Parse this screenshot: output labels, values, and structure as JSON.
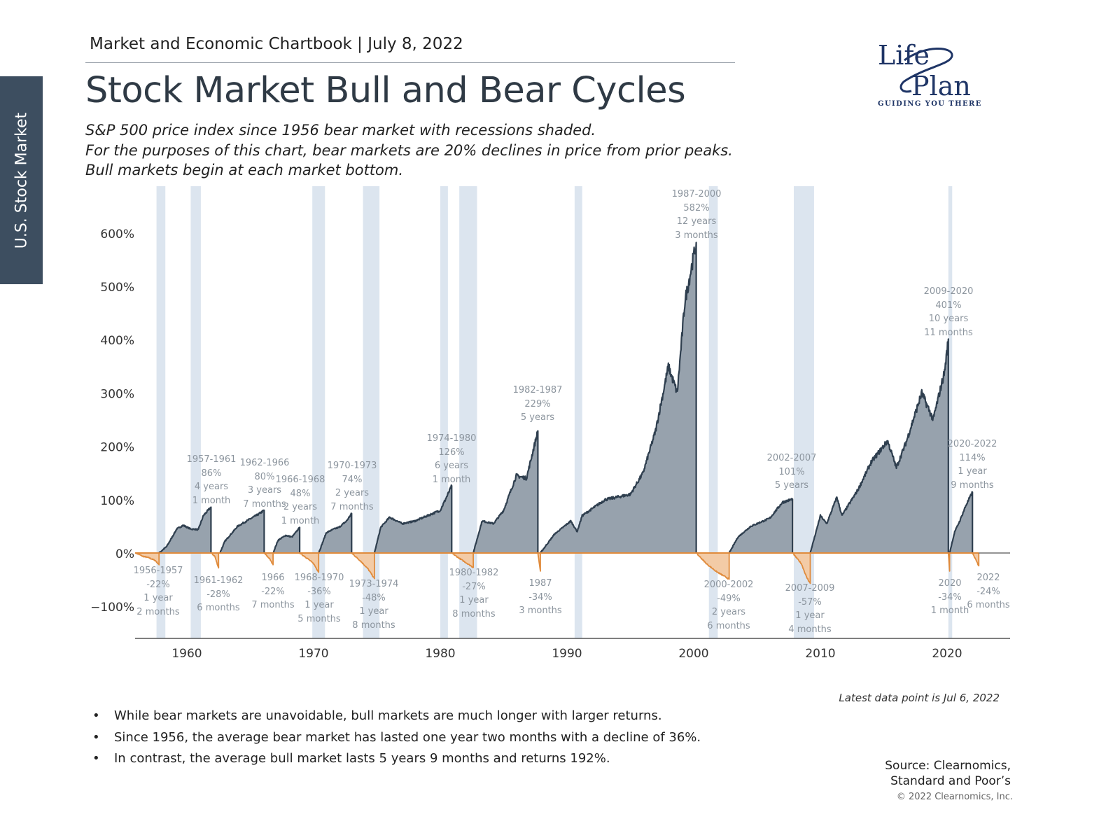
{
  "header": {
    "kicker": "Market and Economic Chartbook | July 8, 2022",
    "title": "Stock Market Bull and Bear Cycles",
    "subtitle": "S&P 500 price index since 1956 bear market with recessions shaded.\nFor the purposes of this chart, bear markets are 20% declines in price from prior peaks.\nBull markets begin at each market bottom."
  },
  "side_tab": "U.S. Stock Market",
  "logo": {
    "line1": "Life",
    "line2": "Plan",
    "tagline": "GUIDING YOU THERE",
    "color": "#1f3566"
  },
  "chart_data": {
    "type": "area",
    "xlim": [
      1955.9,
      2025.3
    ],
    "ylim": [
      -160,
      690
    ],
    "x_ticks": [
      1960,
      1970,
      1980,
      1990,
      2000,
      2010,
      2020
    ],
    "y_ticks": [
      -100,
      0,
      100,
      200,
      300,
      400,
      500,
      600
    ],
    "y_tick_labels": [
      "−100%",
      "0%",
      "100%",
      "200%",
      "300%",
      "400%",
      "500%",
      "600%"
    ],
    "grid": false,
    "colors": {
      "bull_fill": "#97a2ad",
      "bull_line": "#2f3f4f",
      "bear_fill": "#f3cba6",
      "bear_line": "#e08b3c",
      "recession": "#dce5ef",
      "zero_line": "#e08b3c"
    },
    "recessions": [
      [
        1957.6,
        1958.3
      ],
      [
        1960.3,
        1961.1
      ],
      [
        1969.9,
        1970.9
      ],
      [
        1973.9,
        1975.2
      ],
      [
        1980.0,
        1980.6
      ],
      [
        1981.5,
        1982.9
      ],
      [
        1990.6,
        1991.2
      ],
      [
        2001.2,
        2001.9
      ],
      [
        2007.9,
        2009.5
      ],
      [
        2020.1,
        2020.4
      ]
    ],
    "cycles": [
      {
        "kind": "bear",
        "label": "1956-1957\n-22%\n1 year\n2 months",
        "path": [
          [
            1956.0,
            0
          ],
          [
            1956.5,
            -6
          ],
          [
            1957.0,
            -9
          ],
          [
            1957.5,
            -14
          ],
          [
            1957.8,
            -22
          ]
        ]
      },
      {
        "kind": "bull",
        "label": "1957-1961\n86%\n4 years\n1 month",
        "path": [
          [
            1957.8,
            0
          ],
          [
            1958.4,
            12
          ],
          [
            1959.2,
            45
          ],
          [
            1959.7,
            52
          ],
          [
            1960.3,
            45
          ],
          [
            1960.9,
            44
          ],
          [
            1961.3,
            70
          ],
          [
            1961.9,
            86
          ]
        ]
      },
      {
        "kind": "bear",
        "label": "1961-1962\n-28%\n6 months",
        "path": [
          [
            1961.9,
            0
          ],
          [
            1962.2,
            -6
          ],
          [
            1962.5,
            -28
          ]
        ]
      },
      {
        "kind": "bull",
        "label": "1962-1966\n80%\n3 years\n7 months",
        "path": [
          [
            1962.6,
            0
          ],
          [
            1963.0,
            22
          ],
          [
            1964.0,
            50
          ],
          [
            1965.0,
            64
          ],
          [
            1965.6,
            72
          ],
          [
            1966.1,
            80
          ]
        ]
      },
      {
        "kind": "bear",
        "label": "1966\n-22%\n7 months",
        "path": [
          [
            1966.1,
            0
          ],
          [
            1966.5,
            -10
          ],
          [
            1966.8,
            -22
          ]
        ]
      },
      {
        "kind": "bull",
        "label": "1966-1968\n48%\n2 years\n1 month",
        "path": [
          [
            1966.8,
            0
          ],
          [
            1967.2,
            24
          ],
          [
            1967.8,
            33
          ],
          [
            1968.3,
            30
          ],
          [
            1968.9,
            48
          ]
        ]
      },
      {
        "kind": "bear",
        "label": "1968-1970\n-36%\n1 year\n5 months",
        "path": [
          [
            1968.9,
            0
          ],
          [
            1969.5,
            -10
          ],
          [
            1970.0,
            -20
          ],
          [
            1970.4,
            -36
          ]
        ]
      },
      {
        "kind": "bull",
        "label": "1970-1973\n74%\n2 years\n7 months",
        "path": [
          [
            1970.4,
            0
          ],
          [
            1971.0,
            38
          ],
          [
            1971.6,
            45
          ],
          [
            1972.0,
            48
          ],
          [
            1972.6,
            60
          ],
          [
            1973.0,
            74
          ]
        ]
      },
      {
        "kind": "bear",
        "label": "1973-1974\n-48%\n1 year\n8 months",
        "path": [
          [
            1973.0,
            0
          ],
          [
            1973.7,
            -15
          ],
          [
            1974.3,
            -30
          ],
          [
            1974.8,
            -48
          ]
        ]
      },
      {
        "kind": "bull",
        "label": "1974-1980\n126%\n6 years\n1 month",
        "path": [
          [
            1974.8,
            0
          ],
          [
            1975.3,
            48
          ],
          [
            1976.0,
            67
          ],
          [
            1977.0,
            55
          ],
          [
            1978.0,
            60
          ],
          [
            1979.0,
            70
          ],
          [
            1980.0,
            80
          ],
          [
            1980.5,
            105
          ],
          [
            1980.9,
            126
          ]
        ]
      },
      {
        "kind": "bear",
        "label": "1980-1982\n-27%\n1 year\n8 months",
        "path": [
          [
            1980.9,
            0
          ],
          [
            1981.5,
            -10
          ],
          [
            1982.6,
            -27
          ]
        ]
      },
      {
        "kind": "bull",
        "label": "1982-1987\n229%\n5 years",
        "path": [
          [
            1982.6,
            0
          ],
          [
            1983.3,
            60
          ],
          [
            1984.2,
            55
          ],
          [
            1985.0,
            80
          ],
          [
            1986.0,
            145
          ],
          [
            1986.8,
            140
          ],
          [
            1987.7,
            229
          ]
        ]
      },
      {
        "kind": "bear",
        "label": "1987\n-34%\n3 months",
        "path": [
          [
            1987.7,
            0
          ],
          [
            1987.9,
            -34
          ]
        ]
      },
      {
        "kind": "bull",
        "label": "1987-2000\n582%\n12 years\n3 months",
        "path": [
          [
            1987.9,
            0
          ],
          [
            1989.0,
            35
          ],
          [
            1990.3,
            60
          ],
          [
            1990.8,
            40
          ],
          [
            1991.2,
            70
          ],
          [
            1993.0,
            100
          ],
          [
            1995.0,
            110
          ],
          [
            1996.0,
            150
          ],
          [
            1997.0,
            230
          ],
          [
            1998.0,
            350
          ],
          [
            1998.7,
            300
          ],
          [
            1999.3,
            470
          ],
          [
            2000.2,
            582
          ]
        ]
      },
      {
        "kind": "bear",
        "label": "2000-2002\n-49%\n2 years\n6 months",
        "path": [
          [
            2000.2,
            0
          ],
          [
            2001.0,
            -20
          ],
          [
            2001.8,
            -35
          ],
          [
            2002.8,
            -49
          ]
        ]
      },
      {
        "kind": "bull",
        "label": "2002-2007\n101%\n5 years",
        "path": [
          [
            2002.8,
            0
          ],
          [
            2003.5,
            30
          ],
          [
            2004.5,
            50
          ],
          [
            2006.0,
            65
          ],
          [
            2007.0,
            95
          ],
          [
            2007.8,
            101
          ]
        ]
      },
      {
        "kind": "bear",
        "label": "2007-2009\n-57%\n1 year\n4 months",
        "path": [
          [
            2007.8,
            0
          ],
          [
            2008.5,
            -20
          ],
          [
            2008.9,
            -45
          ],
          [
            2009.2,
            -57
          ]
        ]
      },
      {
        "kind": "bull",
        "label": "2009-2020\n401%\n10 years\n11 months",
        "path": [
          [
            2009.2,
            0
          ],
          [
            2010.0,
            70
          ],
          [
            2010.5,
            55
          ],
          [
            2011.3,
            105
          ],
          [
            2011.7,
            70
          ],
          [
            2013.0,
            120
          ],
          [
            2014.0,
            170
          ],
          [
            2015.3,
            210
          ],
          [
            2016.0,
            160
          ],
          [
            2016.8,
            210
          ],
          [
            2018.0,
            300
          ],
          [
            2018.9,
            250
          ],
          [
            2019.8,
            340
          ],
          [
            2020.1,
            401
          ]
        ]
      },
      {
        "kind": "bear",
        "label": "2020\n-34%\n1 month",
        "path": [
          [
            2020.1,
            0
          ],
          [
            2020.2,
            -34
          ]
        ]
      },
      {
        "kind": "bull",
        "label": "2020-2022\n114%\n1 year\n9 months",
        "path": [
          [
            2020.2,
            0
          ],
          [
            2020.6,
            40
          ],
          [
            2021.0,
            60
          ],
          [
            2021.5,
            90
          ],
          [
            2022.0,
            114
          ]
        ]
      },
      {
        "kind": "bear",
        "label": "2022\n-24%\n6 months",
        "path": [
          [
            2022.0,
            0
          ],
          [
            2022.5,
            -24
          ]
        ]
      }
    ]
  },
  "footer": {
    "latest": "Latest data point is Jul 6, 2022",
    "bullets": [
      "While bear markets are unavoidable, bull markets are much longer with larger returns.",
      "Since 1956, the average bear market has lasted one year two months with a decline of 36%.",
      "In contrast, the average bull market lasts 5 years 9 months and returns 192%."
    ],
    "source": "Source: Clearnomics,\nStandard and Poor’s",
    "copyright": "© 2022 Clearnomics, Inc."
  }
}
